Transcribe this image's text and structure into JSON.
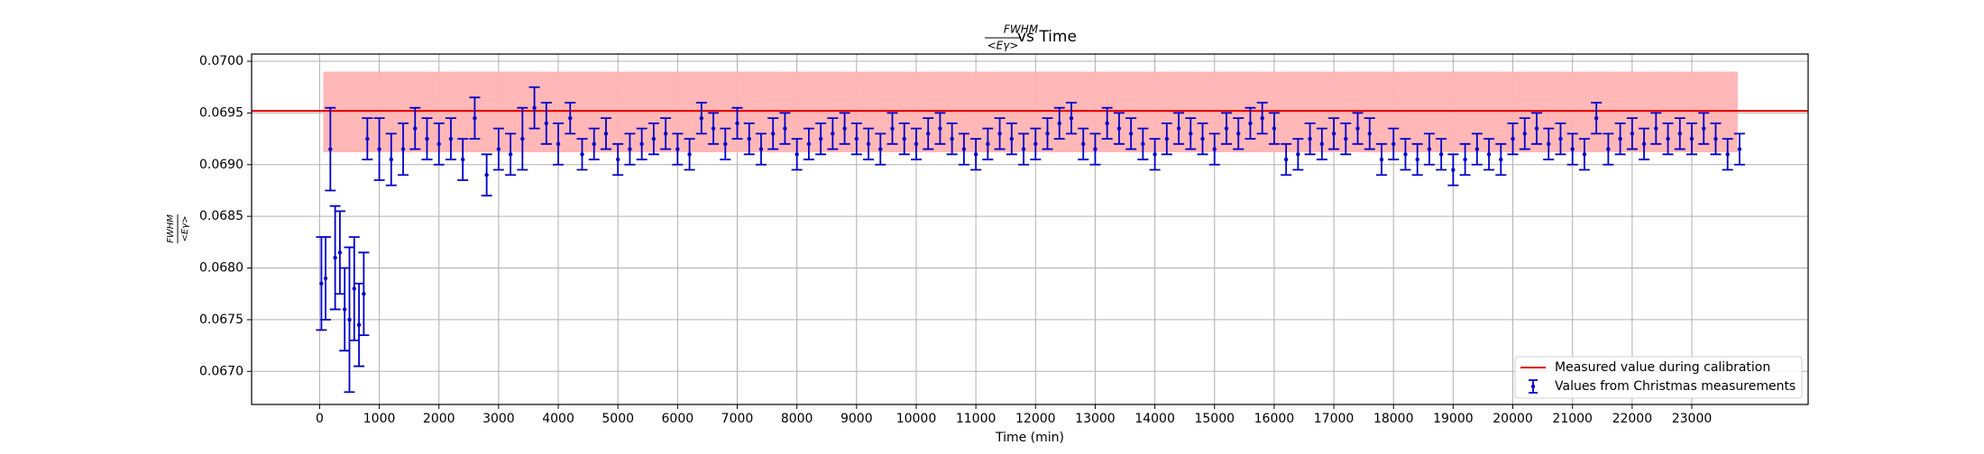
{
  "chart_data": {
    "type": "errorbar",
    "title_numerator": "FWHM",
    "title_denominator": "<Eγ>",
    "title_suffix": "vs Time",
    "ylabel_numerator": "FWHM",
    "ylabel_denominator": "<Eγ>",
    "xlabel": "Time (min)",
    "xlim": [
      -1140,
      24950
    ],
    "ylim": [
      0.06668,
      0.07007
    ],
    "xticks": [
      0,
      1000,
      2000,
      3000,
      4000,
      5000,
      6000,
      7000,
      8000,
      9000,
      10000,
      11000,
      12000,
      13000,
      14000,
      15000,
      16000,
      17000,
      18000,
      19000,
      20000,
      21000,
      22000,
      23000
    ],
    "yticks": [
      {
        "value": 0.067,
        "label": "0.0670"
      },
      0.0675,
      {
        "value": 0.068,
        "label": "0.0680"
      },
      0.0685,
      {
        "value": 0.069,
        "label": "0.0690"
      },
      0.0695,
      {
        "value": 0.07,
        "label": "0.0700"
      }
    ],
    "grid": true,
    "legend": "lower right",
    "band": {
      "x0": 60,
      "x1": 23770,
      "y0": 0.06912,
      "y1": 0.0699,
      "color": "#ffb3b3"
    },
    "reference": {
      "name": "Measured value during calibration",
      "value": 0.06952,
      "color": "#e00000"
    },
    "series": [
      {
        "name": "Values from Christmas measurements",
        "color": "#0000cc",
        "x": [
          30,
          100,
          180,
          260,
          340,
          420,
          500,
          580,
          660,
          740,
          800,
          1000,
          1200,
          1400,
          1600,
          1800,
          2000,
          2200,
          2400,
          2600,
          2800,
          3000,
          3200,
          3400,
          3600,
          3800,
          4000,
          4200,
          4400,
          4600,
          4800,
          5000,
          5200,
          5400,
          5600,
          5800,
          6000,
          6200,
          6400,
          6600,
          6800,
          7000,
          7200,
          7400,
          7600,
          7800,
          8000,
          8200,
          8400,
          8600,
          8800,
          9000,
          9200,
          9400,
          9600,
          9800,
          10000,
          10200,
          10400,
          10600,
          10800,
          11000,
          11200,
          11400,
          11600,
          11800,
          12000,
          12200,
          12400,
          12600,
          12800,
          13000,
          13200,
          13400,
          13600,
          13800,
          14000,
          14200,
          14400,
          14600,
          14800,
          15000,
          15200,
          15400,
          15600,
          15800,
          16000,
          16200,
          16400,
          16600,
          16800,
          17000,
          17200,
          17400,
          17600,
          17800,
          18000,
          18200,
          18400,
          18600,
          18800,
          19000,
          19200,
          19400,
          19600,
          19800,
          20000,
          20200,
          20400,
          20600,
          20800,
          21000,
          21200,
          21400,
          21600,
          21800,
          22000,
          22200,
          22400,
          22600,
          22800,
          23000,
          23200,
          23400,
          23600,
          23800
        ],
        "values": [
          0.06785,
          0.0679,
          0.06915,
          0.0681,
          0.06815,
          0.0676,
          0.0675,
          0.0678,
          0.06745,
          0.06775,
          0.06925,
          0.06915,
          0.06905,
          0.06915,
          0.06935,
          0.06925,
          0.0692,
          0.06925,
          0.06905,
          0.06945,
          0.0689,
          0.06915,
          0.0691,
          0.06925,
          0.06955,
          0.0694,
          0.0692,
          0.06945,
          0.0691,
          0.0692,
          0.0693,
          0.06905,
          0.06915,
          0.0692,
          0.06925,
          0.0693,
          0.06915,
          0.0691,
          0.06945,
          0.06935,
          0.0692,
          0.0694,
          0.06925,
          0.06915,
          0.0693,
          0.06935,
          0.0691,
          0.0692,
          0.06925,
          0.0693,
          0.06935,
          0.06925,
          0.0692,
          0.06915,
          0.06935,
          0.06925,
          0.0692,
          0.0693,
          0.06935,
          0.06925,
          0.06915,
          0.0691,
          0.0692,
          0.0693,
          0.06925,
          0.06915,
          0.0692,
          0.0693,
          0.0694,
          0.06945,
          0.0692,
          0.06915,
          0.0694,
          0.06935,
          0.0693,
          0.0692,
          0.0691,
          0.06925,
          0.06935,
          0.0693,
          0.06925,
          0.06915,
          0.06935,
          0.0693,
          0.0694,
          0.06945,
          0.06935,
          0.06905,
          0.0691,
          0.06925,
          0.0692,
          0.0693,
          0.06925,
          0.06935,
          0.0693,
          0.06905,
          0.0692,
          0.0691,
          0.06905,
          0.06915,
          0.0691,
          0.06895,
          0.06905,
          0.06915,
          0.0691,
          0.06905,
          0.06925,
          0.0693,
          0.06935,
          0.0692,
          0.06925,
          0.06915,
          0.0691,
          0.06945,
          0.06915,
          0.06925,
          0.0693,
          0.0692,
          0.06935,
          0.06925,
          0.0693,
          0.06925,
          0.06935,
          0.06925,
          0.0691,
          0.06915
        ],
        "errors": [
          0.00045,
          0.0004,
          0.0004,
          0.0005,
          0.0004,
          0.0004,
          0.0007,
          0.0005,
          0.0004,
          0.0004,
          0.0002,
          0.0003,
          0.00025,
          0.00025,
          0.0002,
          0.0002,
          0.0002,
          0.0002,
          0.0002,
          0.0002,
          0.0002,
          0.0002,
          0.0002,
          0.0003,
          0.0002,
          0.0002,
          0.0002,
          0.00015,
          0.00015,
          0.00015,
          0.00015,
          0.00015,
          0.00015,
          0.00015,
          0.00015,
          0.00015,
          0.00015,
          0.00015,
          0.00015,
          0.00015,
          0.00015,
          0.00015,
          0.00015,
          0.00015,
          0.00015,
          0.00015,
          0.00015,
          0.00015,
          0.00015,
          0.00015,
          0.00015,
          0.00015,
          0.00015,
          0.00015,
          0.00015,
          0.00015,
          0.00015,
          0.00015,
          0.00015,
          0.00015,
          0.00015,
          0.00015,
          0.00015,
          0.00015,
          0.00015,
          0.00015,
          0.00015,
          0.00015,
          0.00015,
          0.00015,
          0.00015,
          0.00015,
          0.00015,
          0.00015,
          0.00015,
          0.00015,
          0.00015,
          0.00015,
          0.00015,
          0.00015,
          0.00015,
          0.00015,
          0.00015,
          0.00015,
          0.00015,
          0.00015,
          0.00015,
          0.00015,
          0.00015,
          0.00015,
          0.00015,
          0.00015,
          0.00015,
          0.00015,
          0.00015,
          0.00015,
          0.00015,
          0.00015,
          0.00015,
          0.00015,
          0.00015,
          0.00015,
          0.00015,
          0.00015,
          0.00015,
          0.00015,
          0.00015,
          0.00015,
          0.00015,
          0.00015,
          0.00015,
          0.00015,
          0.00015,
          0.00015,
          0.00015,
          0.00015,
          0.00015,
          0.00015,
          0.00015,
          0.00015,
          0.00015,
          0.00015,
          0.00015,
          0.00015,
          0.00015,
          0.00015
        ]
      }
    ]
  }
}
